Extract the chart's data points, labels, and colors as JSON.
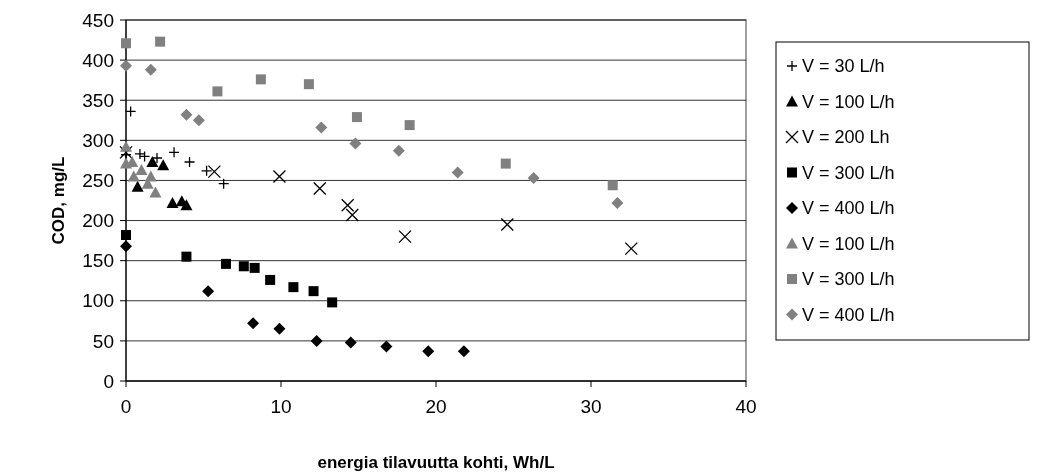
{
  "chart_data": {
    "type": "scatter",
    "xlabel": "energia tilavuutta kohti, Wh/L",
    "ylabel": "COD, mg/L",
    "xlim": [
      0,
      40
    ],
    "xticks": [
      0,
      10,
      20,
      30,
      40
    ],
    "ylim": [
      0,
      450
    ],
    "yticks": [
      0,
      50,
      100,
      150,
      200,
      250,
      300,
      350,
      400,
      450
    ],
    "grid": "y",
    "legend": "right",
    "series": [
      {
        "name": "V = 30 L/h",
        "color": "#000000",
        "marker": "cross",
        "x": [
          0,
          0.3,
          0.9,
          1.2,
          2.0,
          3.1,
          4.1,
          5.2,
          6.3
        ],
        "values": [
          282,
          336,
          283,
          280,
          278,
          285,
          273,
          262,
          246
        ]
      },
      {
        "name": "V = 100 L/h",
        "color": "#000000",
        "marker": "triangle",
        "x": [
          0.75,
          1.7,
          2.4,
          3.0,
          3.6,
          3.9
        ],
        "values": [
          242,
          273,
          269,
          222,
          224,
          219
        ]
      },
      {
        "name": "V = 200 Lh",
        "color": "#000000",
        "marker": "x",
        "x": [
          0,
          5.7,
          9.9,
          12.5,
          14.3,
          14.6,
          18,
          24.6,
          32.6
        ],
        "values": [
          285,
          261,
          255,
          240,
          219,
          207,
          180,
          195,
          165
        ]
      },
      {
        "name": "V = 300 L/h",
        "color": "#000000",
        "marker": "square",
        "x": [
          0,
          3.9,
          6.45,
          7.6,
          8.3,
          9.3,
          10.8,
          12.1,
          13.3
        ],
        "values": [
          182,
          155,
          146,
          143,
          141,
          126,
          117,
          112,
          98
        ]
      },
      {
        "name": "V = 400 L/h",
        "color": "#000000",
        "marker": "diamond",
        "x": [
          0,
          5.3,
          8.2,
          9.9,
          12.3,
          14.5,
          16.8,
          19.5,
          21.8
        ],
        "values": [
          168,
          112,
          72,
          65,
          50,
          48,
          43,
          37,
          37
        ]
      },
      {
        "name": "V = 100 L/h",
        "color": "#808080",
        "marker": "triangle",
        "x": [
          0,
          0,
          0.4,
          0.5,
          1.0,
          1.4,
          1.6,
          1.9
        ],
        "values": [
          292,
          271,
          273,
          255,
          263,
          246,
          255,
          235
        ]
      },
      {
        "name": "V = 300 L/h",
        "color": "#808080",
        "marker": "square",
        "x": [
          0,
          2.2,
          5.9,
          8.7,
          11.8,
          14.9,
          18.3,
          24.5,
          31.4
        ],
        "values": [
          421,
          423,
          361,
          376,
          370,
          329,
          319,
          271,
          244
        ]
      },
      {
        "name": "V = 400 L/h",
        "color": "#808080",
        "marker": "diamond",
        "x": [
          0,
          1.6,
          3.9,
          4.7,
          12.6,
          14.8,
          17.6,
          21.4,
          26.3,
          31.7
        ],
        "values": [
          393,
          388,
          332,
          325,
          316,
          296,
          287,
          260,
          253,
          222
        ]
      }
    ]
  }
}
